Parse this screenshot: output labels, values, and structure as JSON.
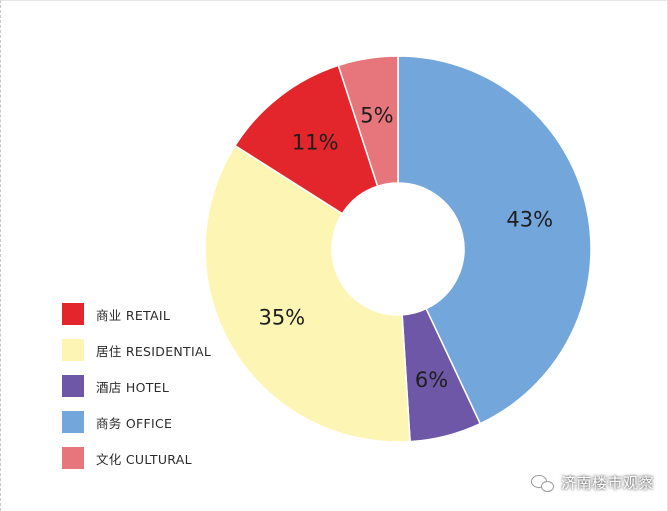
{
  "chart_data": {
    "type": "pie",
    "donut": true,
    "start_angle_deg": 0,
    "direction": "clockwise",
    "slices": [
      {
        "key": "office",
        "label_cn": "商务",
        "label_en": "OFFICE",
        "value": 43,
        "display": "43%",
        "color": "#73a7dc"
      },
      {
        "key": "hotel",
        "label_cn": "酒店",
        "label_en": "HOTEL",
        "value": 6,
        "display": "6%",
        "color": "#6e57a6"
      },
      {
        "key": "residential",
        "label_cn": "居住",
        "label_en": "RESIDENTIAL",
        "value": 35,
        "display": "35%",
        "color": "#fdf5b4"
      },
      {
        "key": "retail",
        "label_cn": "商业",
        "label_en": "RETAIL",
        "value": 11,
        "display": "11%",
        "color": "#e3262b"
      },
      {
        "key": "cultural",
        "label_cn": "文化",
        "label_en": "CULTURAL",
        "value": 5,
        "display": "5%",
        "color": "#e6757c"
      }
    ],
    "legend_order": [
      "retail",
      "residential",
      "hotel",
      "office",
      "cultural"
    ],
    "legend_placement": "left-bottom"
  },
  "watermark": {
    "text": "济南楼市观察",
    "icon": "wechat-icon"
  }
}
